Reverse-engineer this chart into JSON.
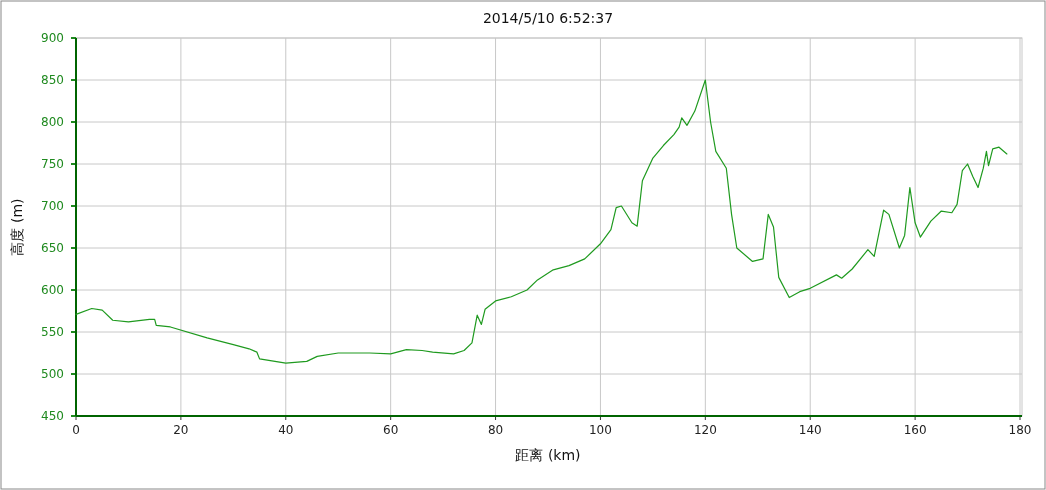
{
  "chart_data": {
    "type": "line",
    "title": "2014/5/10 6:52:37",
    "xlabel": "距离 (km)",
    "ylabel": "高度 (m)",
    "x": [
      0,
      3,
      5,
      7,
      10,
      14,
      15,
      15.3,
      18,
      25,
      30,
      33,
      34.5,
      35,
      40,
      44,
      46,
      50,
      56,
      60,
      63,
      66,
      68,
      72,
      74,
      75.5,
      76.5,
      77.3,
      78,
      80,
      83,
      86,
      88,
      91,
      94,
      97,
      100,
      102,
      103,
      104,
      106,
      107,
      108,
      110,
      112,
      114,
      115,
      115.5,
      116.5,
      118,
      120,
      121,
      122,
      124,
      125,
      126,
      129,
      131,
      132,
      133,
      134,
      136,
      138,
      140,
      145,
      146,
      148,
      151,
      152.2,
      154,
      155,
      157,
      158,
      159,
      160,
      161,
      163,
      165,
      167,
      168,
      169,
      170,
      171,
      172,
      173,
      173.6,
      174,
      174.8,
      176,
      177.5
    ],
    "series": [
      {
        "color": "#1f9a1f",
        "values": [
          571,
          578,
          576,
          564,
          562,
          565,
          565,
          558,
          556,
          543,
          535,
          530,
          526,
          518,
          513,
          515,
          521,
          525,
          525,
          524,
          529,
          528,
          526,
          524,
          528,
          537,
          570,
          559,
          577,
          587,
          592,
          600,
          612,
          624,
          629,
          637,
          655,
          672,
          698,
          700,
          680,
          676,
          730,
          757,
          772,
          785,
          794,
          805,
          796,
          813,
          850,
          800,
          765,
          745,
          690,
          650,
          634,
          637,
          690,
          675,
          615,
          591,
          598,
          602,
          618,
          614,
          625,
          648,
          640,
          695,
          690,
          650,
          665,
          722,
          680,
          663,
          682,
          694,
          692,
          702,
          742,
          750,
          735,
          722,
          745,
          765,
          748,
          768,
          770,
          762
        ]
      }
    ],
    "xlim": [
      0,
      180
    ],
    "ylim": [
      450,
      900
    ],
    "xticks": [
      0,
      20,
      40,
      60,
      80,
      100,
      120,
      140,
      160,
      180
    ],
    "yticks": [
      450,
      500,
      550,
      600,
      650,
      700,
      750,
      800,
      850,
      900
    ],
    "grid": true
  }
}
